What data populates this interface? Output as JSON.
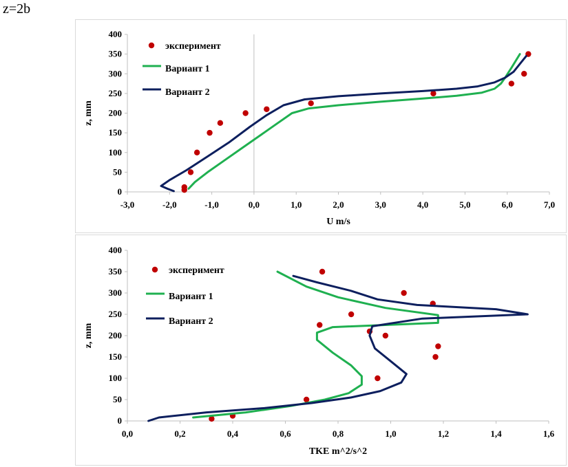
{
  "page_label": "z=2b",
  "colors": {
    "experiment": "#c00000",
    "variant1": "#1fb050",
    "variant2": "#0d1f5e"
  },
  "chart_data": [
    {
      "type": "scatter+line",
      "xlabel": "U m/s",
      "ylabel": "z, mm",
      "xlim": [
        -3,
        7
      ],
      "ylim": [
        0,
        400
      ],
      "xticks": [
        "-3,0",
        "-2,0",
        "-1,0",
        "0,0",
        "1,0",
        "2,0",
        "3,0",
        "4,0",
        "5,0",
        "6,0",
        "7,0"
      ],
      "yticks": [
        "0",
        "50",
        "100",
        "150",
        "200",
        "250",
        "300",
        "350",
        "400"
      ],
      "vertical_zero_line": 0,
      "legend": [
        "эксперимент",
        "Вариант 1",
        "Вариант 2"
      ],
      "series": [
        {
          "name": "эксперимент",
          "kind": "scatter",
          "points": [
            [
              -1.65,
              5
            ],
            [
              -1.65,
              12
            ],
            [
              -1.5,
              50
            ],
            [
              -1.35,
              100
            ],
            [
              -1.05,
              150
            ],
            [
              -0.8,
              175
            ],
            [
              -0.2,
              200
            ],
            [
              0.3,
              210
            ],
            [
              1.35,
              225
            ],
            [
              4.25,
              250
            ],
            [
              6.1,
              275
            ],
            [
              6.4,
              300
            ],
            [
              6.5,
              350
            ]
          ]
        },
        {
          "name": "Вариант 1",
          "kind": "line",
          "points": [
            [
              -1.55,
              8
            ],
            [
              -1.4,
              25
            ],
            [
              -1.1,
              50
            ],
            [
              -0.7,
              80
            ],
            [
              -0.3,
              110
            ],
            [
              0.1,
              140
            ],
            [
              0.5,
              170
            ],
            [
              0.9,
              200
            ],
            [
              1.3,
              212
            ],
            [
              2.0,
              220
            ],
            [
              3.0,
              229
            ],
            [
              4.0,
              237
            ],
            [
              4.8,
              244
            ],
            [
              5.4,
              252
            ],
            [
              5.7,
              262
            ],
            [
              5.85,
              275
            ],
            [
              5.95,
              290
            ],
            [
              6.1,
              315
            ],
            [
              6.3,
              350
            ]
          ]
        },
        {
          "name": "Вариант 2",
          "kind": "line",
          "points": [
            [
              -1.9,
              2
            ],
            [
              -2.05,
              8
            ],
            [
              -2.2,
              15
            ],
            [
              -2.0,
              30
            ],
            [
              -1.6,
              55
            ],
            [
              -1.1,
              90
            ],
            [
              -0.6,
              125
            ],
            [
              -0.1,
              165
            ],
            [
              0.3,
              195
            ],
            [
              0.7,
              220
            ],
            [
              1.2,
              235
            ],
            [
              2.0,
              243
            ],
            [
              3.0,
              250
            ],
            [
              4.0,
              256
            ],
            [
              4.8,
              262
            ],
            [
              5.3,
              268
            ],
            [
              5.7,
              278
            ],
            [
              5.95,
              290
            ],
            [
              6.15,
              305
            ],
            [
              6.3,
              325
            ],
            [
              6.45,
              345
            ]
          ]
        }
      ]
    },
    {
      "type": "scatter+line",
      "xlabel": "TKE m^2/s^2",
      "ylabel": "z, mm",
      "xlim": [
        0,
        1.6
      ],
      "ylim": [
        0,
        400
      ],
      "xticks": [
        "0,0",
        "0,2",
        "0,4",
        "0,6",
        "0,8",
        "1,0",
        "1,2",
        "1,4",
        "1,6"
      ],
      "yticks": [
        "0",
        "50",
        "100",
        "150",
        "200",
        "250",
        "300",
        "350",
        "400"
      ],
      "legend": [
        "эксперимент",
        "Вариант 1",
        "Вариант 2"
      ],
      "series": [
        {
          "name": "эксперимент",
          "kind": "scatter",
          "points": [
            [
              0.32,
              5
            ],
            [
              0.4,
              12
            ],
            [
              0.68,
              50
            ],
            [
              0.95,
              100
            ],
            [
              1.17,
              150
            ],
            [
              1.18,
              175
            ],
            [
              0.98,
              200
            ],
            [
              0.92,
              210
            ],
            [
              0.73,
              225
            ],
            [
              0.85,
              250
            ],
            [
              1.16,
              275
            ],
            [
              1.05,
              300
            ],
            [
              0.74,
              350
            ]
          ]
        },
        {
          "name": "Вариант 1",
          "kind": "line",
          "points": [
            [
              0.25,
              8
            ],
            [
              0.45,
              20
            ],
            [
              0.62,
              35
            ],
            [
              0.75,
              50
            ],
            [
              0.84,
              65
            ],
            [
              0.89,
              85
            ],
            [
              0.89,
              105
            ],
            [
              0.85,
              130
            ],
            [
              0.78,
              160
            ],
            [
              0.72,
              190
            ],
            [
              0.72,
              207
            ],
            [
              0.78,
              220
            ],
            [
              1.18,
              230
            ],
            [
              1.18,
              248
            ],
            [
              0.98,
              265
            ],
            [
              0.8,
              290
            ],
            [
              0.68,
              315
            ],
            [
              0.57,
              350
            ]
          ]
        },
        {
          "name": "Вариант 2",
          "kind": "line",
          "points": [
            [
              0.08,
              0
            ],
            [
              0.12,
              8
            ],
            [
              0.3,
              20
            ],
            [
              0.52,
              30
            ],
            [
              0.7,
              42
            ],
            [
              0.85,
              55
            ],
            [
              0.96,
              70
            ],
            [
              1.04,
              90
            ],
            [
              1.06,
              110
            ],
            [
              1.0,
              140
            ],
            [
              0.94,
              170
            ],
            [
              0.92,
              200
            ],
            [
              0.93,
              222
            ],
            [
              1.12,
              240
            ],
            [
              1.52,
              250
            ],
            [
              1.4,
              262
            ],
            [
              1.1,
              272
            ],
            [
              0.95,
              285
            ],
            [
              0.85,
              305
            ],
            [
              0.72,
              325
            ],
            [
              0.63,
              340
            ]
          ]
        }
      ]
    }
  ]
}
